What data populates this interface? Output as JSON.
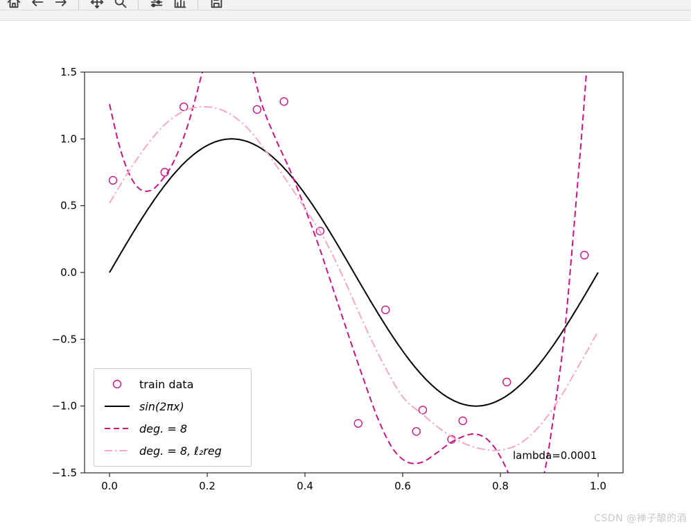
{
  "toolbar": {
    "buttons": [
      {
        "name": "home"
      },
      {
        "name": "back"
      },
      {
        "name": "forward"
      },
      {
        "name": "pan"
      },
      {
        "name": "zoom"
      },
      {
        "name": "configure-subplots"
      },
      {
        "name": "customize"
      },
      {
        "name": "save"
      }
    ]
  },
  "legend": {
    "items": [
      {
        "label": "train data",
        "type": "marker"
      },
      {
        "label": "sin(2πx)",
        "type": "solid"
      },
      {
        "label": "deg. = 8",
        "type": "dashed"
      },
      {
        "label": "deg. = 8, ℓ₂reg",
        "type": "dashdot"
      }
    ]
  },
  "watermark": "CSDN @禅子酿的酒",
  "chart_data": {
    "type": "line",
    "title": "",
    "xlabel": "",
    "ylabel": "",
    "xlim": [
      -0.0511,
      1.0511
    ],
    "ylim": [
      -1.5,
      1.5
    ],
    "x_ticks": [
      0.0,
      0.2,
      0.4,
      0.6,
      0.8,
      1.0
    ],
    "x_tick_labels": [
      "0.0",
      "0.2",
      "0.4",
      "0.6",
      "0.8",
      "1.0"
    ],
    "y_ticks": [
      -1.5,
      -1.0,
      -0.5,
      0.0,
      0.5,
      1.0,
      1.5
    ],
    "y_tick_labels": [
      "−1.5",
      "−1.0",
      "−0.5",
      "0.0",
      "0.5",
      "1.0",
      "1.5"
    ],
    "grid": false,
    "legend_position": "lower left",
    "colors": {
      "train": "#c71585",
      "sin": "#000000",
      "deg8": "#c71585",
      "deg8reg": "#f7a8c4"
    },
    "scatter": {
      "name": "train data",
      "x": [
        0.007,
        0.113,
        0.152,
        0.302,
        0.357,
        0.431,
        0.509,
        0.565,
        0.628,
        0.641,
        0.7,
        0.723,
        0.813,
        0.972
      ],
      "y": [
        0.69,
        0.75,
        1.24,
        1.22,
        1.28,
        0.31,
        -1.13,
        -0.28,
        -1.19,
        -1.03,
        -1.25,
        -1.11,
        -0.82,
        0.13
      ]
    },
    "series": [
      {
        "name": "sin(2πx)",
        "kind": "function",
        "formula": "sin(2*pi*x)",
        "domain": [
          0,
          1
        ],
        "style": "solid",
        "color_key": "sin"
      },
      {
        "name": "deg. = 8",
        "kind": "sampled",
        "style": "dashed",
        "color_key": "deg8",
        "x": [
          0.0,
          0.02,
          0.04,
          0.06,
          0.08,
          0.1,
          0.13,
          0.16,
          0.19,
          0.22,
          0.25,
          0.28,
          0.31,
          0.34,
          0.37,
          0.4,
          0.43,
          0.46,
          0.49,
          0.52,
          0.55,
          0.58,
          0.61,
          0.64,
          0.67,
          0.7,
          0.73,
          0.75,
          0.77,
          0.79,
          0.81,
          0.83,
          0.85,
          0.87,
          0.89,
          0.91,
          0.93,
          0.945,
          0.96,
          0.97,
          0.98
        ],
        "y": [
          1.26,
          0.95,
          0.74,
          0.63,
          0.61,
          0.66,
          0.82,
          1.1,
          1.5,
          1.9,
          2.0,
          1.7,
          1.28,
          1.0,
          0.76,
          0.48,
          0.18,
          -0.15,
          -0.48,
          -0.8,
          -1.1,
          -1.32,
          -1.42,
          -1.42,
          -1.35,
          -1.27,
          -1.22,
          -1.21,
          -1.24,
          -1.32,
          -1.45,
          -1.62,
          -1.75,
          -1.7,
          -1.5,
          -1.05,
          -0.5,
          0.1,
          0.75,
          1.2,
          1.7
        ]
      },
      {
        "name": "deg. = 8, ℓ₂reg",
        "kind": "sampled",
        "style": "dashdot",
        "color_key": "deg8reg",
        "x": [
          0.0,
          0.04,
          0.08,
          0.12,
          0.16,
          0.2,
          0.24,
          0.28,
          0.32,
          0.36,
          0.4,
          0.44,
          0.48,
          0.52,
          0.56,
          0.6,
          0.64,
          0.68,
          0.72,
          0.76,
          0.8,
          0.84,
          0.88,
          0.92,
          0.96,
          1.0
        ],
        "y": [
          0.52,
          0.76,
          0.97,
          1.13,
          1.22,
          1.24,
          1.2,
          1.09,
          0.91,
          0.7,
          0.48,
          0.25,
          -0.05,
          -0.38,
          -0.68,
          -0.93,
          -1.06,
          -1.18,
          -1.27,
          -1.32,
          -1.33,
          -1.28,
          -1.15,
          -0.95,
          -0.7,
          -0.44
        ]
      }
    ],
    "annotation": {
      "text": "lambda=0.0001",
      "x": 0.825,
      "y": -1.39
    }
  }
}
